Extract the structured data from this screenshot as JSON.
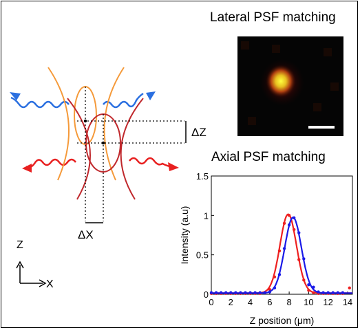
{
  "lateral_title": "Lateral PSF matching",
  "axial_title": "Axial PSF matching",
  "delta_z_label": "ΔZ",
  "delta_x_label": "ΔX",
  "axis_z_label": "Z",
  "axis_x_label": "X",
  "colors": {
    "orange": "#f59a3a",
    "dark_red": "#c0282c",
    "red_series": "#ee2020",
    "blue_series": "#1a1ae8",
    "blue_wave": "#2a6fe0",
    "red_wave": "#e82020"
  },
  "chart_data": {
    "type": "line",
    "title": "",
    "xlabel": "Z position (μm)",
    "ylabel": "Intensity (a.u)",
    "xlim": [
      0,
      14.5
    ],
    "ylim": [
      0,
      1.5
    ],
    "xticks": [
      "0",
      "2",
      "4",
      "6",
      "8",
      "10",
      "12",
      "14"
    ],
    "yticks": [
      "0",
      "0.5",
      "1",
      "1.5"
    ],
    "grid": false,
    "series": [
      {
        "color": "#ee2020",
        "fit": {
          "center": 7.9,
          "sigma": 0.85,
          "amplitude": 1.0
        },
        "points": [
          [
            0,
            0.01
          ],
          [
            0.5,
            0.01
          ],
          [
            1,
            0.01
          ],
          [
            1.5,
            0.01
          ],
          [
            2,
            0.01
          ],
          [
            2.5,
            0.01
          ],
          [
            3,
            0.01
          ],
          [
            3.5,
            0.01
          ],
          [
            4,
            0.01
          ],
          [
            4.5,
            0.01
          ],
          [
            5,
            0.01
          ],
          [
            5.5,
            0.02
          ],
          [
            6,
            0.06
          ],
          [
            6.5,
            0.22
          ],
          [
            7,
            0.55
          ],
          [
            7.5,
            0.9
          ],
          [
            8,
            1.0
          ],
          [
            8.5,
            0.82
          ],
          [
            9,
            0.44
          ],
          [
            9.5,
            0.18
          ],
          [
            10,
            0.05
          ],
          [
            10.5,
            0.02
          ],
          [
            11,
            0.01
          ],
          [
            11.5,
            0.01
          ],
          [
            12,
            0.01
          ],
          [
            12.5,
            0.01
          ],
          [
            13,
            0.01
          ],
          [
            13.5,
            0.01
          ],
          [
            14.2,
            0.08
          ]
        ]
      },
      {
        "color": "#1a1ae8",
        "fit": {
          "center": 8.4,
          "sigma": 0.85,
          "amplitude": 0.96
        },
        "points": [
          [
            0,
            0.02
          ],
          [
            0.5,
            0.02
          ],
          [
            1,
            0.02
          ],
          [
            1.5,
            0.02
          ],
          [
            2,
            0.02
          ],
          [
            2.5,
            0.02
          ],
          [
            3,
            0.02
          ],
          [
            3.5,
            0.02
          ],
          [
            4,
            0.02
          ],
          [
            4.5,
            0.02
          ],
          [
            5,
            0.02
          ],
          [
            5.5,
            0.02
          ],
          [
            6,
            0.03
          ],
          [
            6.5,
            0.08
          ],
          [
            7,
            0.25
          ],
          [
            7.5,
            0.58
          ],
          [
            8,
            0.88
          ],
          [
            8.5,
            0.97
          ],
          [
            9,
            0.78
          ],
          [
            9.5,
            0.45
          ],
          [
            10,
            0.12
          ],
          [
            10.5,
            0.09
          ],
          [
            11,
            0.03
          ],
          [
            11.5,
            0.02
          ],
          [
            12,
            0.02
          ],
          [
            12.5,
            0.02
          ],
          [
            13,
            0.02
          ],
          [
            13.5,
            0.02
          ]
        ]
      }
    ]
  }
}
